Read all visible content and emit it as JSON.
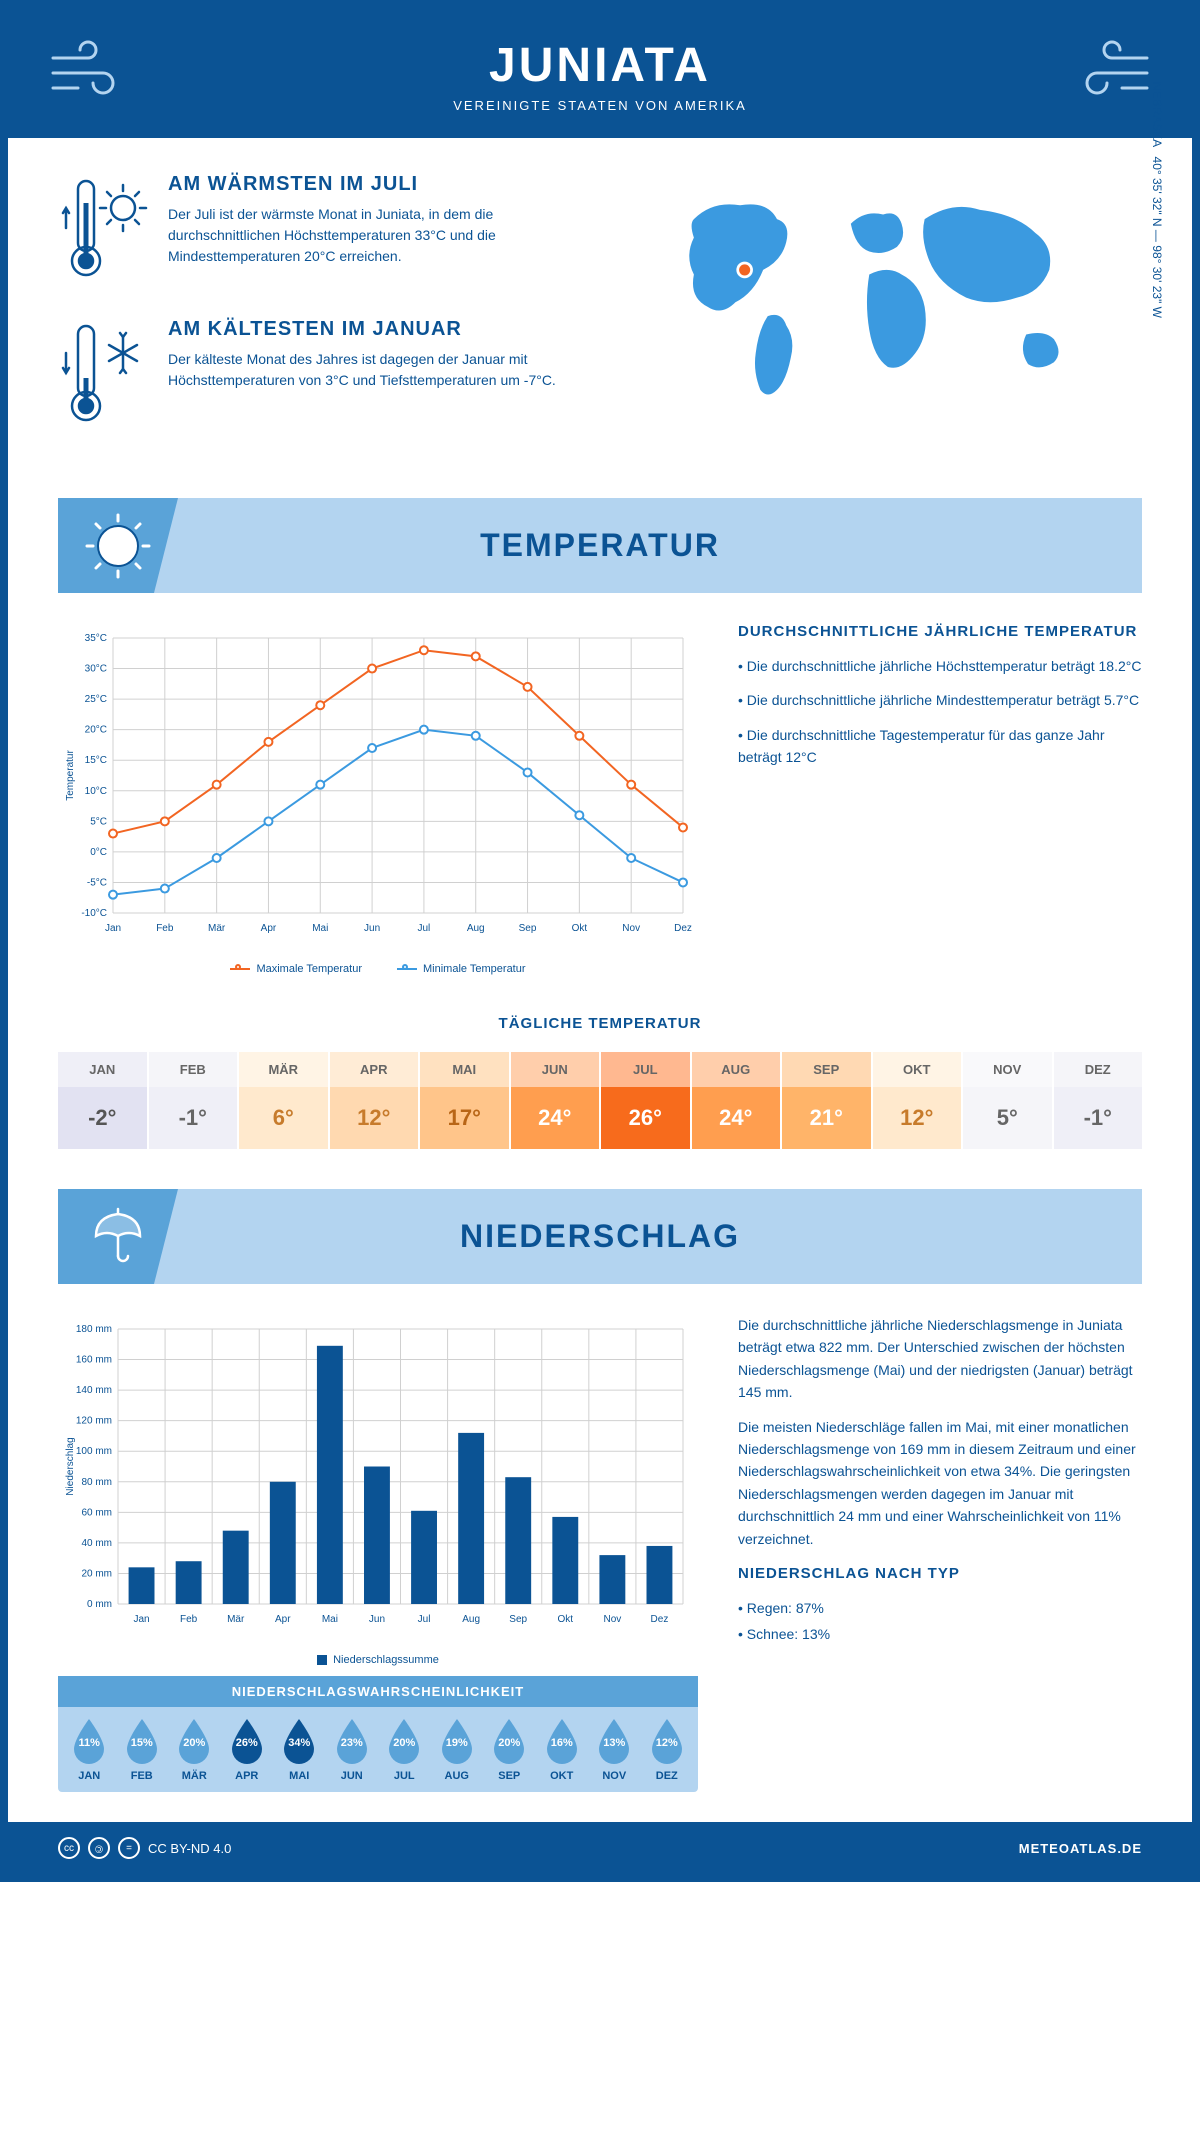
{
  "header": {
    "title": "JUNIATA",
    "subtitle": "VEREINIGTE STAATEN VON AMERIKA"
  },
  "coords": {
    "lat": "40° 35' 32\" N",
    "lon": "98° 30' 23\" W",
    "region": "NEBRASKA"
  },
  "warmest": {
    "title": "AM WÄRMSTEN IM JULI",
    "text": "Der Juli ist der wärmste Monat in Juniata, in dem die durchschnittlichen Höchsttemperaturen 33°C und die Mindesttemperaturen 20°C erreichen."
  },
  "coldest": {
    "title": "AM KÄLTESTEN IM JANUAR",
    "text": "Der kälteste Monat des Jahres ist dagegen der Januar mit Höchsttemperaturen von 3°C und Tiefsttemperaturen um -7°C."
  },
  "temp_section": {
    "title": "TEMPERATUR",
    "chart": {
      "type": "line",
      "months": [
        "Jan",
        "Feb",
        "Mär",
        "Apr",
        "Mai",
        "Jun",
        "Jul",
        "Aug",
        "Sep",
        "Okt",
        "Nov",
        "Dez"
      ],
      "series": [
        {
          "name": "Maximale Temperatur",
          "color": "#f26522",
          "values": [
            3,
            5,
            11,
            18,
            24,
            30,
            33,
            32,
            27,
            19,
            11,
            4
          ]
        },
        {
          "name": "Minimale Temperatur",
          "color": "#3b9ae0",
          "values": [
            -7,
            -6,
            -1,
            5,
            11,
            17,
            20,
            19,
            13,
            6,
            -1,
            -5
          ]
        }
      ],
      "ylim": [
        -10,
        35
      ],
      "ytick_step": 5,
      "y_unit": "°C",
      "ylabel": "Temperatur",
      "grid_color": "#d0d0d0",
      "bg": "#ffffff",
      "line_width": 2,
      "marker_size": 4
    },
    "summary": {
      "title": "DURCHSCHNITTLICHE JÄHRLICHE TEMPERATUR",
      "bullets": [
        "• Die durchschnittliche jährliche Höchsttemperatur beträgt 18.2°C",
        "• Die durchschnittliche jährliche Mindesttemperatur beträgt 5.7°C",
        "• Die durchschnittliche Tagestemperatur für das ganze Jahr beträgt 12°C"
      ]
    },
    "daily": {
      "title": "TÄGLICHE TEMPERATUR",
      "months": [
        "JAN",
        "FEB",
        "MÄR",
        "APR",
        "MAI",
        "JUN",
        "JUL",
        "AUG",
        "SEP",
        "OKT",
        "NOV",
        "DEZ"
      ],
      "values": [
        "-2°",
        "-1°",
        "6°",
        "12°",
        "17°",
        "24°",
        "26°",
        "24°",
        "21°",
        "12°",
        "5°",
        "-1°"
      ],
      "cell_bg": [
        "#e2e2f2",
        "#efeff7",
        "#ffe9cd",
        "#ffd9b0",
        "#ffc58a",
        "#ff9e4f",
        "#f76b1c",
        "#ff9e4f",
        "#ffb469",
        "#ffe9cd",
        "#f5f5f9",
        "#efeff7"
      ],
      "cell_text": [
        "#555",
        "#666",
        "#c77b2b",
        "#c77b2b",
        "#b86516",
        "#ffffff",
        "#ffffff",
        "#ffffff",
        "#ffffff",
        "#c77b2b",
        "#666",
        "#666"
      ],
      "mon_bg": [
        "#efeff7",
        "#f5f5f9",
        "#fff4e5",
        "#ffecd6",
        "#ffe1c0",
        "#ffceab",
        "#ffb890",
        "#ffceab",
        "#ffd9b3",
        "#fff4e5",
        "#f9f9fb",
        "#f5f5f9"
      ]
    }
  },
  "precip_section": {
    "title": "NIEDERSCHLAG",
    "chart": {
      "type": "bar",
      "months": [
        "Jan",
        "Feb",
        "Mär",
        "Apr",
        "Mai",
        "Jun",
        "Jul",
        "Aug",
        "Sep",
        "Okt",
        "Nov",
        "Dez"
      ],
      "values": [
        24,
        28,
        48,
        80,
        169,
        90,
        61,
        112,
        83,
        57,
        32,
        38
      ],
      "bar_color": "#0b5394",
      "ylim": [
        0,
        180
      ],
      "ytick_step": 20,
      "y_unit": " mm",
      "ylabel": "Niederschlag",
      "legend": "Niederschlagssumme",
      "grid_color": "#d0d0d0",
      "bar_width": 0.55
    },
    "text": {
      "p1": "Die durchschnittliche jährliche Niederschlagsmenge in Juniata beträgt etwa 822 mm. Der Unterschied zwischen der höchsten Niederschlagsmenge (Mai) und der niedrigsten (Januar) beträgt 145 mm.",
      "p2": "Die meisten Niederschläge fallen im Mai, mit einer monatlichen Niederschlagsmenge von 169 mm in diesem Zeitraum und einer Niederschlagswahrscheinlichkeit von etwa 34%. Die geringsten Niederschlagsmengen werden dagegen im Januar mit durchschnittlich 24 mm und einer Wahrscheinlichkeit von 11% verzeichnet.",
      "type_title": "NIEDERSCHLAG NACH TYP",
      "type_bullets": [
        "• Regen: 87%",
        "• Schnee: 13%"
      ]
    },
    "probability": {
      "title": "NIEDERSCHLAGSWAHRSCHEINLICHKEIT",
      "months": [
        "JAN",
        "FEB",
        "MÄR",
        "APR",
        "MAI",
        "JUN",
        "JUL",
        "AUG",
        "SEP",
        "OKT",
        "NOV",
        "DEZ"
      ],
      "values": [
        "11%",
        "15%",
        "20%",
        "26%",
        "34%",
        "23%",
        "20%",
        "19%",
        "20%",
        "16%",
        "13%",
        "12%"
      ],
      "colors": [
        "#5aa3d8",
        "#5aa3d8",
        "#5aa3d8",
        "#0b5394",
        "#0b5394",
        "#5aa3d8",
        "#5aa3d8",
        "#5aa3d8",
        "#5aa3d8",
        "#5aa3d8",
        "#5aa3d8",
        "#5aa3d8"
      ]
    }
  },
  "footer": {
    "license": "CC BY-ND 4.0",
    "site": "METEOATLAS.DE"
  },
  "palette": {
    "primary": "#0b5394",
    "light": "#b3d4f0",
    "mid": "#5aa3d8"
  }
}
